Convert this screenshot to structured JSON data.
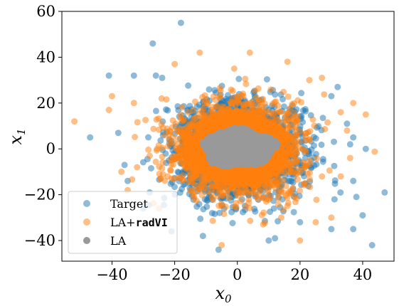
{
  "chart_data": {
    "type": "scatter",
    "title": "",
    "xlabel": "x0",
    "ylabel": "x1",
    "xlim": [
      -56,
      50
    ],
    "ylim": [
      -49,
      60
    ],
    "xticks": [
      -40,
      -20,
      0,
      20,
      40
    ],
    "yticks": [
      -40,
      -20,
      0,
      20,
      40,
      60
    ],
    "xtick_labels": [
      "−40",
      "−20",
      "0",
      "20",
      "40"
    ],
    "ytick_labels": [
      "−40",
      "−20",
      "0",
      "20",
      "40",
      "60"
    ],
    "grid": false,
    "legend_position": "lower-left",
    "series": [
      {
        "name": "Target",
        "color": "#1f77b4",
        "alpha": 0.5,
        "distribution": "isotropic Gaussian cloud centred at origin, std about 10, sampled densely",
        "outliers": [
          [
            -18,
            55
          ],
          [
            -27,
            46
          ],
          [
            -41,
            32
          ],
          [
            -33,
            32
          ],
          [
            -26,
            32
          ],
          [
            -24,
            31
          ],
          [
            32,
            27
          ],
          [
            30,
            23
          ],
          [
            35,
            11
          ],
          [
            37,
            5
          ],
          [
            41,
            0
          ],
          [
            36,
            2
          ],
          [
            47,
            -19
          ],
          [
            37,
            -14
          ],
          [
            38,
            -21
          ],
          [
            40,
            -29
          ],
          [
            -47,
            5
          ],
          [
            -38,
            7
          ],
          [
            -36,
            -7
          ],
          [
            -35,
            -14
          ],
          [
            -28,
            -19
          ],
          [
            -30,
            -26
          ],
          [
            -6,
            -44
          ],
          [
            43,
            -42
          ],
          [
            37,
            -35
          ],
          [
            20,
            -32
          ],
          [
            10,
            -40
          ],
          [
            12,
            -39
          ],
          [
            -11,
            -38
          ],
          [
            -21,
            -36
          ],
          [
            31,
            -22
          ],
          [
            30,
            -35
          ]
        ]
      },
      {
        "name": "LA+radVI",
        "color": "#ff7f0e",
        "alpha": 0.5,
        "distribution": "isotropic Gaussian cloud centred at origin, std about 10, sampled densely",
        "outliers": [
          [
            -52,
            12
          ],
          [
            -40,
            23
          ],
          [
            -41,
            17
          ],
          [
            -33,
            20
          ],
          [
            -20,
            37
          ],
          [
            -12,
            42
          ],
          [
            4,
            42
          ],
          [
            -1,
            35
          ],
          [
            16,
            38
          ],
          [
            23,
            30
          ],
          [
            27,
            31
          ],
          [
            37,
            20
          ],
          [
            41,
            15
          ],
          [
            33,
            16
          ],
          [
            35,
            8
          ],
          [
            33,
            -12
          ],
          [
            36,
            -4
          ],
          [
            30,
            -30
          ],
          [
            25,
            -32
          ],
          [
            20,
            -40
          ],
          [
            14,
            -30
          ],
          [
            -5,
            -42
          ],
          [
            -25,
            -26
          ],
          [
            -35,
            -18
          ],
          [
            -37,
            -10
          ],
          [
            -32,
            -8
          ],
          [
            -28,
            -3
          ]
        ]
      },
      {
        "name": "LA",
        "color": "#999999",
        "alpha": 1.0,
        "distribution": "compact blob roughly x in [-12, 13], y in [-9, 9]"
      }
    ]
  },
  "legend": {
    "items": [
      {
        "label": "Target",
        "mono": ""
      },
      {
        "label": "LA+",
        "mono": "radVI"
      },
      {
        "label": "LA",
        "mono": ""
      }
    ]
  }
}
